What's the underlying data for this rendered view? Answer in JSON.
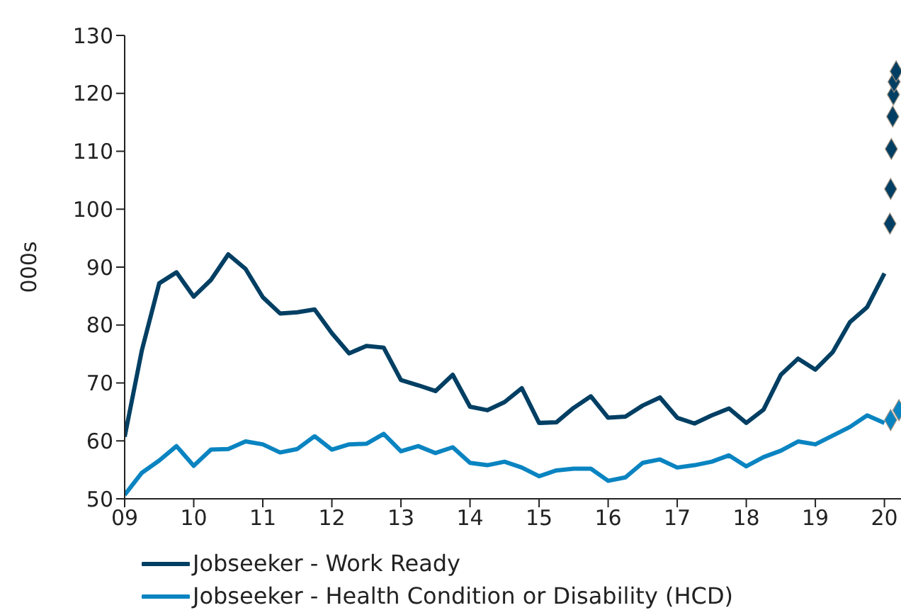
{
  "chart_data": {
    "type": "line",
    "ylabel": "000s",
    "xlim": [
      2009,
      2020.24
    ],
    "xticks": [
      {
        "value": 2009,
        "label": "09"
      },
      {
        "value": 2010,
        "label": "10"
      },
      {
        "value": 2011,
        "label": "11"
      },
      {
        "value": 2012,
        "label": "12"
      },
      {
        "value": 2013,
        "label": "13"
      },
      {
        "value": 2014,
        "label": "14"
      },
      {
        "value": 2015,
        "label": "15"
      },
      {
        "value": 2016,
        "label": "16"
      },
      {
        "value": 2017,
        "label": "17"
      },
      {
        "value": 2018,
        "label": "18"
      },
      {
        "value": 2019,
        "label": "19"
      },
      {
        "value": 2020,
        "label": "20"
      }
    ],
    "ylim": [
      50,
      130
    ],
    "yticks": [
      50,
      60,
      70,
      80,
      90,
      100,
      110,
      120,
      130
    ],
    "grid": false,
    "legend": "bottom",
    "line_style": "solid",
    "series": [
      {
        "name": "Jobseeker - Work Ready",
        "color": "#003f63",
        "x": [
          2009,
          2009.25,
          2009.5,
          2009.75,
          2010,
          2010.25,
          2010.5,
          2010.75,
          2011,
          2011.25,
          2011.5,
          2011.75,
          2012,
          2012.25,
          2012.5,
          2012.75,
          2013,
          2013.25,
          2013.5,
          2013.75,
          2014,
          2014.25,
          2014.5,
          2014.75,
          2015,
          2015.25,
          2015.5,
          2015.75,
          2016,
          2016.25,
          2016.5,
          2016.75,
          2017,
          2017.25,
          2017.5,
          2017.75,
          2018,
          2018.25,
          2018.5,
          2018.75,
          2019,
          2019.25,
          2019.5,
          2019.75,
          2020
        ],
        "values": [
          60.7,
          75.7,
          87.2,
          89.1,
          84.9,
          87.8,
          92.2,
          89.7,
          84.8,
          82,
          82.2,
          82.7,
          78.6,
          75.1,
          76.4,
          76.1,
          70.5,
          69.6,
          68.6,
          71.4,
          65.9,
          65.3,
          66.7,
          69.1,
          63.1,
          63.2,
          65.7,
          67.7,
          64,
          64.2,
          66.1,
          67.5,
          64,
          63,
          64.4,
          65.6,
          63.1,
          65.4,
          71.4,
          74.2,
          72.3,
          75.3,
          80.5,
          83.1,
          88.9
        ]
      },
      {
        "name": "Jobseeker - Health Condition or Disability (HCD)",
        "color": "#0a84c1",
        "x": [
          2009,
          2009.25,
          2009.5,
          2009.75,
          2010,
          2010.25,
          2010.5,
          2010.75,
          2011,
          2011.25,
          2011.5,
          2011.75,
          2012,
          2012.25,
          2012.5,
          2012.75,
          2013,
          2013.25,
          2013.5,
          2013.75,
          2014,
          2014.25,
          2014.5,
          2014.75,
          2015,
          2015.25,
          2015.5,
          2015.75,
          2016,
          2016.25,
          2016.5,
          2016.75,
          2017,
          2017.25,
          2017.5,
          2017.75,
          2018,
          2018.25,
          2018.5,
          2018.75,
          2019,
          2019.25,
          2019.5,
          2019.75,
          2020
        ],
        "values": [
          50.7,
          54.5,
          56.6,
          59.1,
          55.7,
          58.5,
          58.6,
          59.9,
          59.4,
          58,
          58.6,
          60.8,
          58.5,
          59.4,
          59.5,
          61.2,
          58.2,
          59.1,
          57.9,
          58.9,
          56.2,
          55.8,
          56.4,
          55.4,
          53.9,
          54.9,
          55.2,
          55.2,
          53.1,
          53.7,
          56.2,
          56.8,
          55.4,
          55.8,
          56.4,
          57.5,
          55.6,
          57.2,
          58.3,
          59.9,
          59.4,
          60.9,
          62.4,
          64.4,
          63.1
        ]
      },
      {
        "type": "scatter",
        "marker": "diamond",
        "color": "#003f63",
        "x": [
          2020.08,
          2020.09,
          2020.1,
          2020.12,
          2020.13,
          2020.14,
          2020.17
        ],
        "values": [
          97.5,
          103.5,
          110.4,
          116,
          119.8,
          122,
          123.8
        ]
      },
      {
        "type": "scatter",
        "marker": "diamond",
        "color": "#0a84c1",
        "x": [
          2020.09,
          2020.21
        ],
        "values": [
          63.6,
          65.3
        ]
      }
    ]
  }
}
